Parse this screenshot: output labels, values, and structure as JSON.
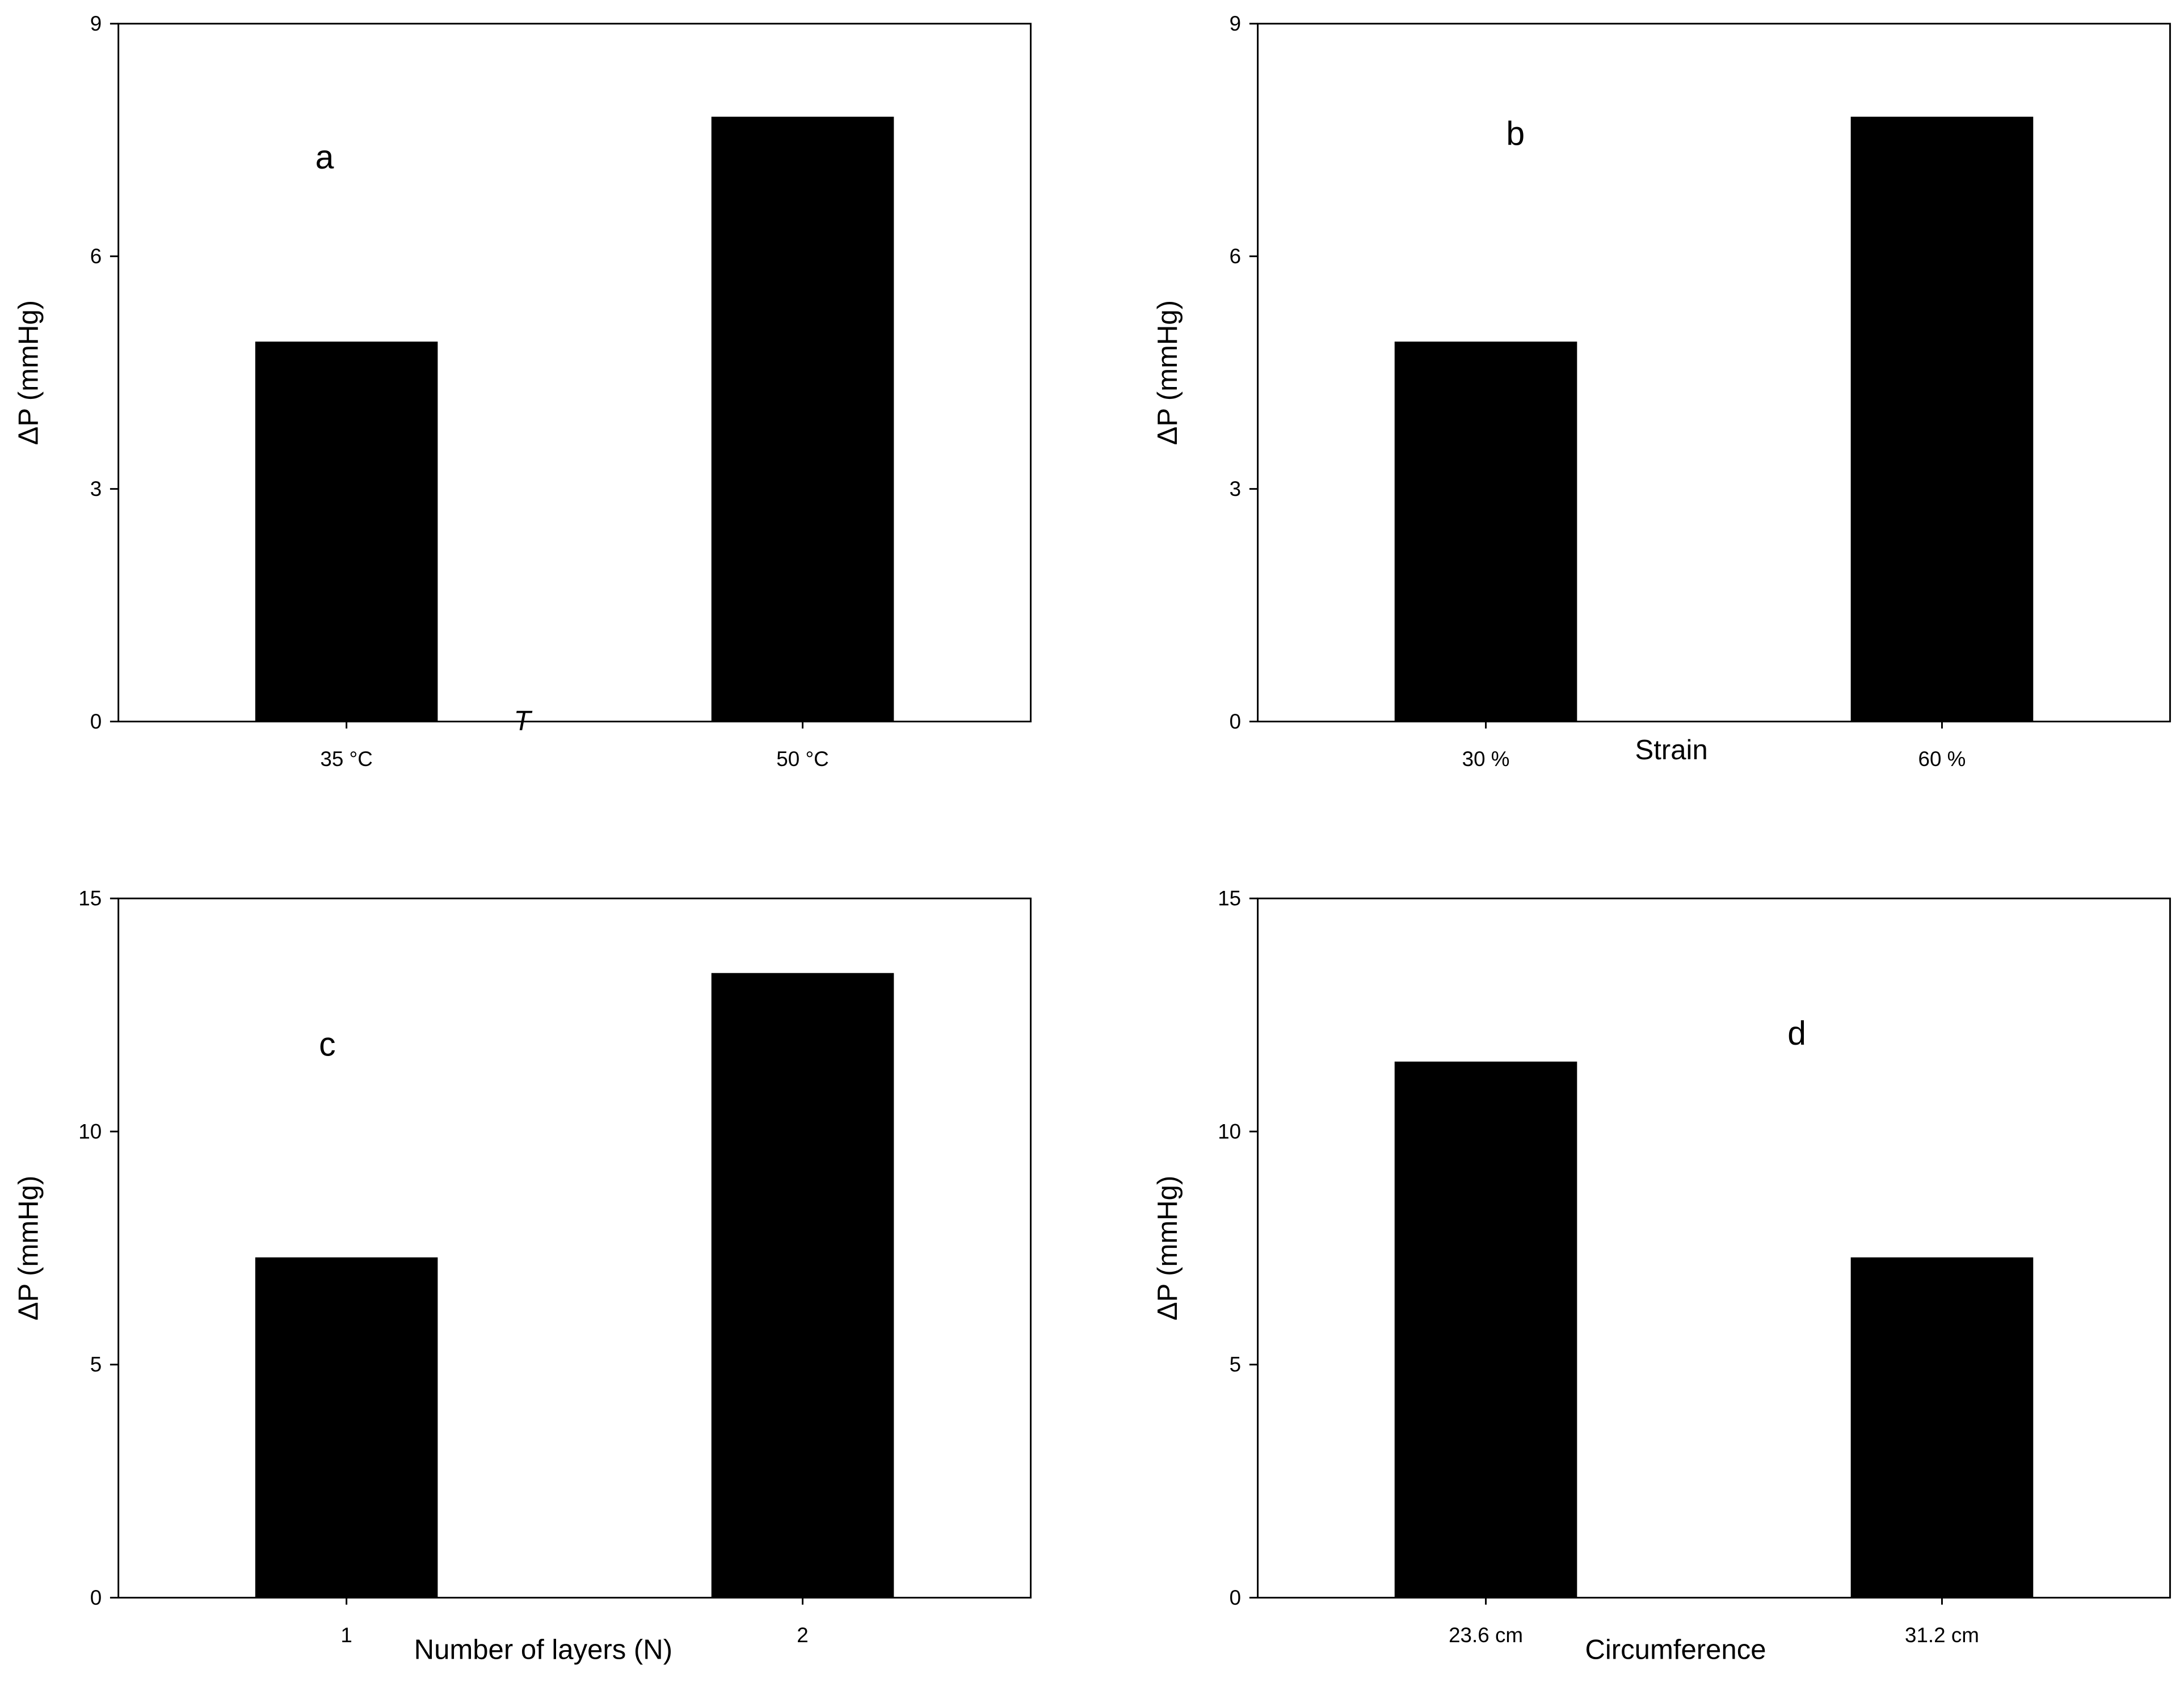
{
  "chart_data": [
    {
      "type": "bar",
      "label": "a",
      "x_label": "T",
      "y_label": "ΔP (mmHg)",
      "categories": [
        "35 °C",
        "50 °C"
      ],
      "values": [
        4.9,
        7.8
      ],
      "color": "#000000",
      "ylim": [
        0,
        9
      ],
      "yticks": [
        0,
        3,
        6,
        9
      ]
    },
    {
      "type": "bar",
      "label": "b",
      "x_label": "Strain",
      "y_label": "ΔP (mmHg)",
      "categories": [
        "30 %",
        "60 %"
      ],
      "values": [
        4.9,
        7.8
      ],
      "color": "#000000",
      "ylim": [
        0,
        9
      ],
      "yticks": [
        0,
        3,
        6,
        9
      ]
    },
    {
      "type": "bar",
      "label": "c",
      "x_label": "Number of layers (N)",
      "y_label": "ΔP (mmHg)",
      "categories": [
        "1",
        "2"
      ],
      "values": [
        7.3,
        13.4
      ],
      "color": "#000000",
      "ylim": [
        0,
        15
      ],
      "yticks": [
        0,
        5,
        10,
        15
      ]
    },
    {
      "type": "bar",
      "label": "d",
      "x_label": "Circumference",
      "y_label": "ΔP (mmHg)",
      "categories": [
        "23.6 cm",
        "31.2 cm"
      ],
      "values": [
        11.5,
        7.3
      ],
      "color": "#000000",
      "ylim": [
        0,
        15
      ],
      "yticks": [
        0,
        5,
        10,
        15
      ]
    }
  ]
}
